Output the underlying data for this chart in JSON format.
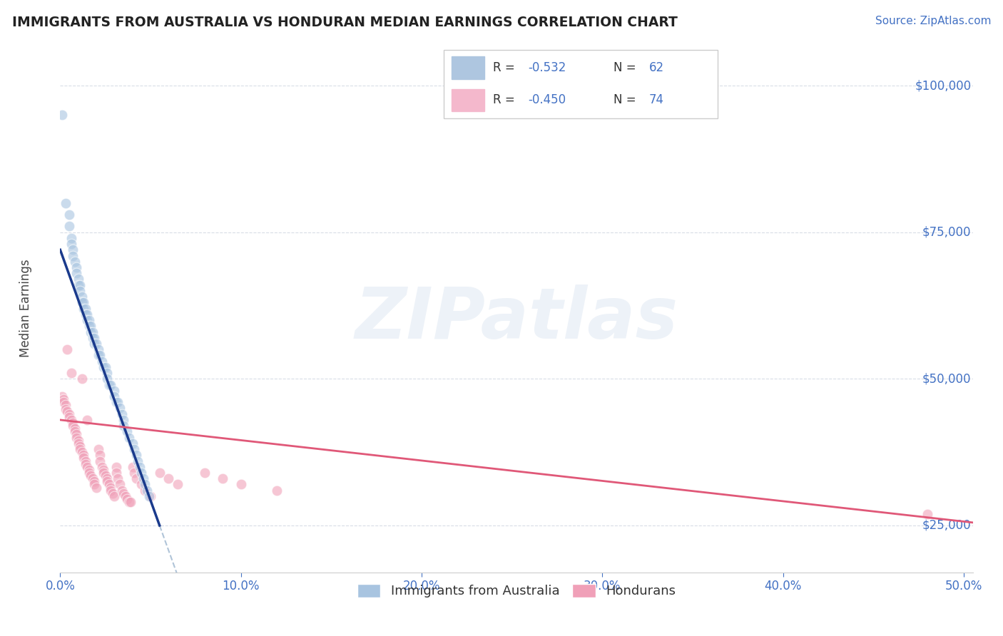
{
  "title": "IMMIGRANTS FROM AUSTRALIA VS HONDURAN MEDIAN EARNINGS CORRELATION CHART",
  "source": "Source: ZipAtlas.com",
  "ylabel": "Median Earnings",
  "yticks": [
    25000,
    50000,
    75000,
    100000
  ],
  "ytick_labels": [
    "$25,000",
    "$50,000",
    "$75,000",
    "$100,000"
  ],
  "background_color": "#ffffff",
  "grid_color": "#d8dde6",
  "blue_color": "#a8c4e0",
  "pink_color": "#f0a0b8",
  "blue_line_color": "#1a3a8c",
  "pink_line_color": "#e05878",
  "gray_dash_color": "#b0c4d8",
  "title_color": "#222222",
  "source_color": "#4472c4",
  "axis_color": "#4472c4",
  "watermark": "ZIPatlas",
  "xmin": 0.0,
  "xmax": 0.505,
  "ymin": 17000,
  "ymax": 107000,
  "australia_points": [
    [
      0.001,
      95000
    ],
    [
      0.003,
      80000
    ],
    [
      0.005,
      78000
    ],
    [
      0.005,
      76000
    ],
    [
      0.006,
      74000
    ],
    [
      0.006,
      73000
    ],
    [
      0.007,
      72000
    ],
    [
      0.007,
      71000
    ],
    [
      0.008,
      70000
    ],
    [
      0.009,
      69000
    ],
    [
      0.009,
      68000
    ],
    [
      0.01,
      67000
    ],
    [
      0.01,
      66000
    ],
    [
      0.011,
      66000
    ],
    [
      0.011,
      65000
    ],
    [
      0.012,
      64000
    ],
    [
      0.012,
      63000
    ],
    [
      0.013,
      63000
    ],
    [
      0.013,
      62000
    ],
    [
      0.014,
      62000
    ],
    [
      0.014,
      61000
    ],
    [
      0.015,
      61000
    ],
    [
      0.015,
      60000
    ],
    [
      0.016,
      60000
    ],
    [
      0.016,
      59000
    ],
    [
      0.017,
      59000
    ],
    [
      0.017,
      58000
    ],
    [
      0.018,
      58000
    ],
    [
      0.018,
      57000
    ],
    [
      0.019,
      57000
    ],
    [
      0.019,
      56000
    ],
    [
      0.02,
      56000
    ],
    [
      0.021,
      55000
    ],
    [
      0.021,
      54000
    ],
    [
      0.022,
      54000
    ],
    [
      0.023,
      53000
    ],
    [
      0.024,
      52000
    ],
    [
      0.025,
      52000
    ],
    [
      0.026,
      51000
    ],
    [
      0.026,
      50000
    ],
    [
      0.027,
      49000
    ],
    [
      0.028,
      49000
    ],
    [
      0.03,
      48000
    ],
    [
      0.03,
      47000
    ],
    [
      0.031,
      46000
    ],
    [
      0.032,
      46000
    ],
    [
      0.033,
      45000
    ],
    [
      0.034,
      44000
    ],
    [
      0.035,
      43000
    ],
    [
      0.035,
      42000
    ],
    [
      0.037,
      41000
    ],
    [
      0.038,
      40000
    ],
    [
      0.04,
      39000
    ],
    [
      0.041,
      38000
    ],
    [
      0.042,
      37000
    ],
    [
      0.043,
      36000
    ],
    [
      0.044,
      35000
    ],
    [
      0.045,
      34000
    ],
    [
      0.046,
      33000
    ],
    [
      0.047,
      32000
    ],
    [
      0.048,
      31000
    ],
    [
      0.049,
      30000
    ]
  ],
  "honduran_points": [
    [
      0.001,
      47000
    ],
    [
      0.002,
      46500
    ],
    [
      0.002,
      46000
    ],
    [
      0.003,
      45500
    ],
    [
      0.003,
      44800
    ],
    [
      0.004,
      44500
    ],
    [
      0.004,
      55000
    ],
    [
      0.005,
      44000
    ],
    [
      0.005,
      43500
    ],
    [
      0.006,
      51000
    ],
    [
      0.006,
      43000
    ],
    [
      0.007,
      42500
    ],
    [
      0.007,
      42000
    ],
    [
      0.008,
      41500
    ],
    [
      0.008,
      41000
    ],
    [
      0.009,
      40500
    ],
    [
      0.009,
      40000
    ],
    [
      0.01,
      39500
    ],
    [
      0.01,
      39000
    ],
    [
      0.011,
      38500
    ],
    [
      0.011,
      38000
    ],
    [
      0.012,
      37500
    ],
    [
      0.012,
      50000
    ],
    [
      0.013,
      37000
    ],
    [
      0.013,
      36500
    ],
    [
      0.014,
      36000
    ],
    [
      0.014,
      35500
    ],
    [
      0.015,
      43000
    ],
    [
      0.015,
      35000
    ],
    [
      0.016,
      34500
    ],
    [
      0.016,
      34000
    ],
    [
      0.017,
      33500
    ],
    [
      0.018,
      33000
    ],
    [
      0.019,
      32500
    ],
    [
      0.019,
      32000
    ],
    [
      0.02,
      31500
    ],
    [
      0.021,
      38000
    ],
    [
      0.022,
      37000
    ],
    [
      0.022,
      36000
    ],
    [
      0.023,
      35000
    ],
    [
      0.024,
      34500
    ],
    [
      0.024,
      34000
    ],
    [
      0.025,
      33500
    ],
    [
      0.026,
      33000
    ],
    [
      0.026,
      32500
    ],
    [
      0.027,
      32000
    ],
    [
      0.028,
      31500
    ],
    [
      0.028,
      31000
    ],
    [
      0.029,
      30500
    ],
    [
      0.03,
      30000
    ],
    [
      0.031,
      35000
    ],
    [
      0.031,
      34000
    ],
    [
      0.032,
      33000
    ],
    [
      0.033,
      32000
    ],
    [
      0.034,
      31000
    ],
    [
      0.035,
      30500
    ],
    [
      0.036,
      30000
    ],
    [
      0.037,
      29500
    ],
    [
      0.038,
      29000
    ],
    [
      0.039,
      29000
    ],
    [
      0.04,
      35000
    ],
    [
      0.041,
      34000
    ],
    [
      0.042,
      33000
    ],
    [
      0.045,
      32000
    ],
    [
      0.047,
      31000
    ],
    [
      0.05,
      30000
    ],
    [
      0.055,
      34000
    ],
    [
      0.06,
      33000
    ],
    [
      0.065,
      32000
    ],
    [
      0.08,
      34000
    ],
    [
      0.09,
      33000
    ],
    [
      0.1,
      32000
    ],
    [
      0.12,
      31000
    ],
    [
      0.48,
      27000
    ]
  ],
  "blue_line_x0": 0.0,
  "blue_line_x1": 0.055,
  "blue_line_y0": 72000,
  "blue_line_y1": 25000,
  "gray_line_x0": 0.055,
  "gray_line_x1": 0.28,
  "pink_line_x0": 0.0,
  "pink_line_x1": 0.505,
  "pink_line_y0": 43000,
  "pink_line_y1": 25500
}
